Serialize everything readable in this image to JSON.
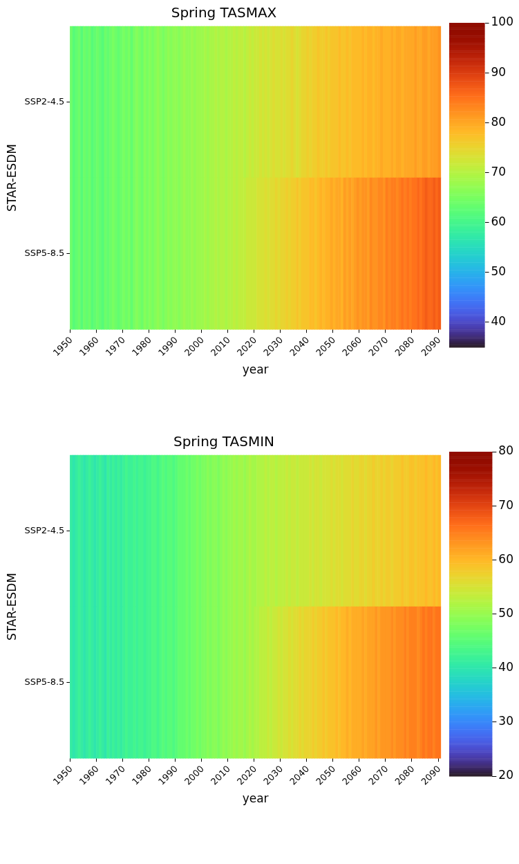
{
  "chart_data": [
    {
      "type": "heatmap",
      "title": "Spring TASMAX",
      "xlabel": "year",
      "ylabel": "STAR-ESDM",
      "categories": [
        "1950",
        null,
        null,
        null,
        null,
        null,
        null,
        null,
        null,
        null,
        "1960",
        null,
        null,
        null,
        null,
        null,
        null,
        null,
        null,
        null,
        "1970",
        null,
        null,
        null,
        null,
        null,
        null,
        null,
        null,
        null,
        "1980",
        null,
        null,
        null,
        null,
        null,
        null,
        null,
        null,
        null,
        "1990",
        null,
        null,
        null,
        null,
        null,
        null,
        null,
        null,
        null,
        "2000",
        null,
        null,
        null,
        null,
        null,
        null,
        null,
        null,
        null,
        "2010",
        null,
        null,
        null,
        null,
        null,
        null,
        null,
        null,
        null,
        "2020",
        null,
        null,
        null,
        null,
        null,
        null,
        null,
        null,
        null,
        "2030",
        null,
        null,
        null,
        null,
        null,
        null,
        null,
        null,
        null,
        "2040",
        null,
        null,
        null,
        null,
        null,
        null,
        null,
        null,
        null,
        "2050",
        null,
        null,
        null,
        null,
        null,
        null,
        null,
        null,
        null,
        "2060",
        null,
        null,
        null,
        null,
        null,
        null,
        null,
        null,
        null,
        "2070",
        null,
        null,
        null,
        null,
        null,
        null,
        null,
        null,
        null,
        "2080",
        null,
        null,
        null,
        null,
        null,
        null,
        null,
        null,
        null,
        "2090"
      ],
      "y_categories": [
        "SSP2-4.5",
        "SSP5-8.5"
      ],
      "cells": [
        [
          64,
          62,
          63,
          64,
          62,
          64,
          63,
          64,
          62,
          63,
          64,
          63,
          62,
          64,
          63,
          64,
          65,
          64,
          63,
          64,
          65,
          64,
          65,
          63,
          65,
          66,
          65,
          64,
          66,
          65,
          66,
          65,
          66,
          67,
          66,
          65,
          66,
          67,
          66,
          67,
          67,
          66,
          67,
          68,
          67,
          67,
          68,
          67,
          68,
          68,
          68,
          69,
          68,
          69,
          69,
          70,
          69,
          70,
          70,
          69,
          70,
          70,
          71,
          70,
          71,
          71,
          70,
          71,
          72,
          71,
          72,
          72,
          73,
          72,
          73,
          72,
          73,
          74,
          73,
          73,
          74,
          73,
          74,
          74,
          75,
          74,
          73,
          74,
          75,
          75,
          76,
          75,
          76,
          76,
          77,
          76,
          76,
          77,
          76,
          77,
          77,
          77,
          78,
          77,
          77,
          78,
          77,
          78,
          78,
          78,
          78,
          79,
          78,
          79,
          79,
          78,
          79,
          79,
          80,
          79,
          79,
          79,
          80,
          79,
          80,
          80,
          79,
          80,
          80,
          80,
          80,
          81,
          80,
          80,
          81,
          81,
          80,
          81,
          81,
          81,
          82
        ],
        [
          64,
          62,
          63,
          64,
          62,
          64,
          63,
          64,
          62,
          63,
          64,
          63,
          62,
          64,
          63,
          64,
          65,
          64,
          63,
          64,
          65,
          64,
          65,
          63,
          65,
          66,
          65,
          64,
          66,
          65,
          66,
          65,
          66,
          67,
          66,
          65,
          66,
          67,
          66,
          67,
          67,
          66,
          67,
          68,
          67,
          67,
          68,
          67,
          68,
          68,
          68,
          69,
          68,
          69,
          69,
          70,
          69,
          70,
          70,
          69,
          70,
          70,
          71,
          70,
          71,
          71,
          71,
          72,
          72,
          72,
          72,
          73,
          73,
          73,
          74,
          73,
          74,
          74,
          75,
          74,
          75,
          75,
          76,
          75,
          76,
          76,
          77,
          76,
          77,
          77,
          77,
          78,
          78,
          77,
          78,
          79,
          78,
          79,
          79,
          80,
          79,
          80,
          80,
          79,
          81,
          80,
          81,
          80,
          81,
          82,
          81,
          82,
          82,
          81,
          83,
          82,
          82,
          83,
          83,
          82,
          84,
          83,
          84,
          84,
          83,
          84,
          85,
          84,
          85,
          84,
          85,
          85,
          86,
          85,
          86,
          87,
          86,
          86,
          87,
          86,
          87
        ]
      ],
      "clim": [
        35,
        100
      ],
      "cticks": [
        40,
        50,
        60,
        70,
        80,
        90,
        100
      ]
    },
    {
      "type": "heatmap",
      "title": "Spring TASMIN",
      "xlabel": "year",
      "ylabel": "STAR-ESDM",
      "categories": [
        "1950",
        null,
        null,
        null,
        null,
        null,
        null,
        null,
        null,
        null,
        "1960",
        null,
        null,
        null,
        null,
        null,
        null,
        null,
        null,
        null,
        "1970",
        null,
        null,
        null,
        null,
        null,
        null,
        null,
        null,
        null,
        "1980",
        null,
        null,
        null,
        null,
        null,
        null,
        null,
        null,
        null,
        "1990",
        null,
        null,
        null,
        null,
        null,
        null,
        null,
        null,
        null,
        "2000",
        null,
        null,
        null,
        null,
        null,
        null,
        null,
        null,
        null,
        "2010",
        null,
        null,
        null,
        null,
        null,
        null,
        null,
        null,
        null,
        "2020",
        null,
        null,
        null,
        null,
        null,
        null,
        null,
        null,
        null,
        "2030",
        null,
        null,
        null,
        null,
        null,
        null,
        null,
        null,
        null,
        "2040",
        null,
        null,
        null,
        null,
        null,
        null,
        null,
        null,
        null,
        "2050",
        null,
        null,
        null,
        null,
        null,
        null,
        null,
        null,
        null,
        "2060",
        null,
        null,
        null,
        null,
        null,
        null,
        null,
        null,
        null,
        "2070",
        null,
        null,
        null,
        null,
        null,
        null,
        null,
        null,
        null,
        "2080",
        null,
        null,
        null,
        null,
        null,
        null,
        null,
        null,
        null,
        "2090"
      ],
      "y_categories": [
        "SSP2-4.5",
        "SSP5-8.5"
      ],
      "cells": [
        [
          41,
          40,
          41,
          42,
          41,
          40,
          41,
          42,
          41,
          40,
          41,
          42,
          41,
          40,
          42,
          41,
          42,
          41,
          42,
          41,
          42,
          43,
          42,
          42,
          43,
          42,
          43,
          43,
          42,
          43,
          43,
          44,
          44,
          43,
          44,
          45,
          44,
          45,
          45,
          44,
          45,
          46,
          46,
          46,
          47,
          46,
          47,
          47,
          48,
          47,
          48,
          48,
          49,
          48,
          49,
          49,
          48,
          49,
          50,
          49,
          50,
          50,
          51,
          50,
          51,
          51,
          50,
          51,
          52,
          51,
          51,
          52,
          52,
          52,
          53,
          52,
          53,
          53,
          52,
          53,
          53,
          53,
          54,
          53,
          54,
          54,
          53,
          54,
          54,
          54,
          54,
          55,
          54,
          55,
          55,
          54,
          55,
          55,
          55,
          56,
          55,
          56,
          56,
          55,
          56,
          56,
          56,
          57,
          56,
          56,
          57,
          57,
          56,
          57,
          57,
          58,
          57,
          57,
          58,
          57,
          58,
          58,
          57,
          58,
          58,
          58,
          59,
          58,
          58,
          59,
          59,
          58,
          59,
          59,
          59,
          60,
          59,
          59,
          60,
          59,
          60
        ],
        [
          41,
          40,
          41,
          42,
          41,
          40,
          41,
          42,
          41,
          40,
          41,
          42,
          41,
          40,
          42,
          41,
          42,
          41,
          42,
          41,
          42,
          43,
          42,
          42,
          43,
          42,
          43,
          43,
          42,
          43,
          43,
          44,
          44,
          43,
          44,
          45,
          44,
          45,
          45,
          44,
          45,
          46,
          46,
          46,
          47,
          46,
          47,
          47,
          48,
          47,
          48,
          48,
          49,
          48,
          49,
          49,
          48,
          49,
          50,
          49,
          50,
          50,
          51,
          50,
          51,
          51,
          50,
          51,
          52,
          51,
          52,
          52,
          53,
          53,
          53,
          54,
          53,
          54,
          54,
          55,
          54,
          55,
          55,
          56,
          55,
          56,
          56,
          57,
          56,
          57,
          57,
          57,
          58,
          57,
          58,
          58,
          59,
          58,
          59,
          59,
          59,
          60,
          59,
          60,
          60,
          61,
          60,
          61,
          61,
          61,
          61,
          62,
          61,
          62,
          62,
          62,
          63,
          62,
          63,
          63,
          63,
          63,
          64,
          63,
          64,
          64,
          64,
          65,
          64,
          65,
          65,
          65,
          64,
          65,
          66,
          65,
          66,
          66,
          65,
          66,
          66
        ]
      ],
      "clim": [
        20,
        80
      ],
      "cticks": [
        20,
        30,
        40,
        50,
        60,
        70,
        80
      ]
    }
  ]
}
